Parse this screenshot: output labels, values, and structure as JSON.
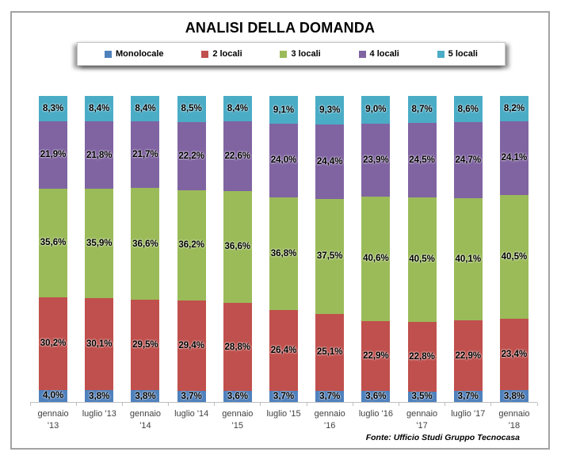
{
  "chart_data": {
    "type": "bar",
    "stacked": true,
    "percent_stacked": true,
    "title": "ANALISI DELLA DOMANDA",
    "legend_position": "top",
    "grid": false,
    "ylim": [
      0,
      100
    ],
    "categories": [
      "gennaio\n'13",
      "luglio '13",
      "gennaio\n'14",
      "luglio '14",
      "gennaio\n'15",
      "luglio '15",
      "gennaio\n'16",
      "luglio '16",
      "gennaio\n'17",
      "luglio '17",
      "gennaio\n'18"
    ],
    "series": [
      {
        "name": "Monolocale",
        "color": "#4F81BD",
        "values": [
          4.0,
          3.8,
          3.8,
          3.7,
          3.6,
          3.7,
          3.7,
          3.6,
          3.5,
          3.7,
          3.8
        ],
        "labels": [
          "4,0%",
          "3,8%",
          "3,8%",
          "3,7%",
          "3,6%",
          "3,7%",
          "3,7%",
          "3,6%",
          "3,5%",
          "3,7%",
          "3,8%"
        ]
      },
      {
        "name": "2 locali",
        "color": "#C0504D",
        "values": [
          30.2,
          30.1,
          29.5,
          29.4,
          28.8,
          26.4,
          25.1,
          22.9,
          22.8,
          22.9,
          23.4
        ],
        "labels": [
          "30,2%",
          "30,1%",
          "29,5%",
          "29,4%",
          "28,8%",
          "26,4%",
          "25,1%",
          "22,9%",
          "22,8%",
          "22,9%",
          "23,4%"
        ]
      },
      {
        "name": "3 locali",
        "color": "#9BBB59",
        "values": [
          35.6,
          35.9,
          36.6,
          36.2,
          36.6,
          36.8,
          37.5,
          40.6,
          40.5,
          40.1,
          40.5
        ],
        "labels": [
          "35,6%",
          "35,9%",
          "36,6%",
          "36,2%",
          "36,6%",
          "36,8%",
          "37,5%",
          "40,6%",
          "40,5%",
          "40,1%",
          "40,5%"
        ]
      },
      {
        "name": "4 locali",
        "color": "#8064A2",
        "values": [
          21.9,
          21.8,
          21.7,
          22.2,
          22.6,
          24.0,
          24.4,
          23.9,
          24.5,
          24.7,
          24.1
        ],
        "labels": [
          "21,9%",
          "21,8%",
          "21,7%",
          "22,2%",
          "22,6%",
          "24,0%",
          "24,4%",
          "23,9%",
          "24,5%",
          "24,7%",
          "24,1%"
        ]
      },
      {
        "name": "5 locali",
        "color": "#4BACC6",
        "values": [
          8.3,
          8.4,
          8.4,
          8.5,
          8.4,
          9.1,
          9.3,
          9.0,
          8.7,
          8.6,
          8.2
        ],
        "labels": [
          "8,3%",
          "8,4%",
          "8,4%",
          "8,5%",
          "8,4%",
          "9,1%",
          "9,3%",
          "9,0%",
          "8,7%",
          "8,6%",
          "8,2%"
        ]
      }
    ],
    "source": "Fonte: Ufficio Studi Gruppo Tecnocasa",
    "axis_color": "#bfbfbf",
    "label_color": "#3f3f3f"
  }
}
